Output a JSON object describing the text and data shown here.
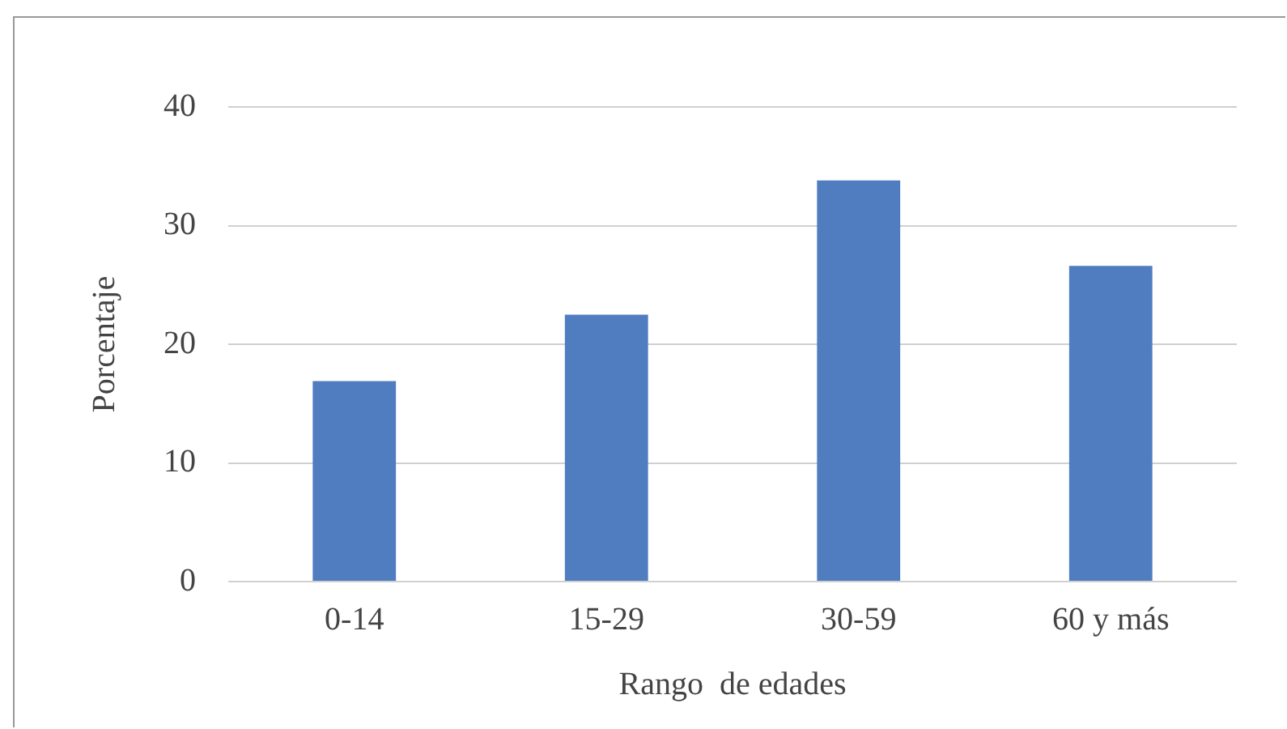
{
  "chart_data": {
    "type": "bar",
    "xlabel": "Rango  de edades",
    "ylabel": "Porcentaje",
    "categories": [
      "0-14",
      "15-29",
      "30-59",
      "60 y más"
    ],
    "values": [
      16.9,
      22.5,
      33.8,
      26.6
    ],
    "color": "#507cc0",
    "ylim": [
      0,
      40
    ],
    "yticks": [
      0,
      10,
      20,
      30,
      40
    ],
    "grid": "y",
    "legend": false
  }
}
